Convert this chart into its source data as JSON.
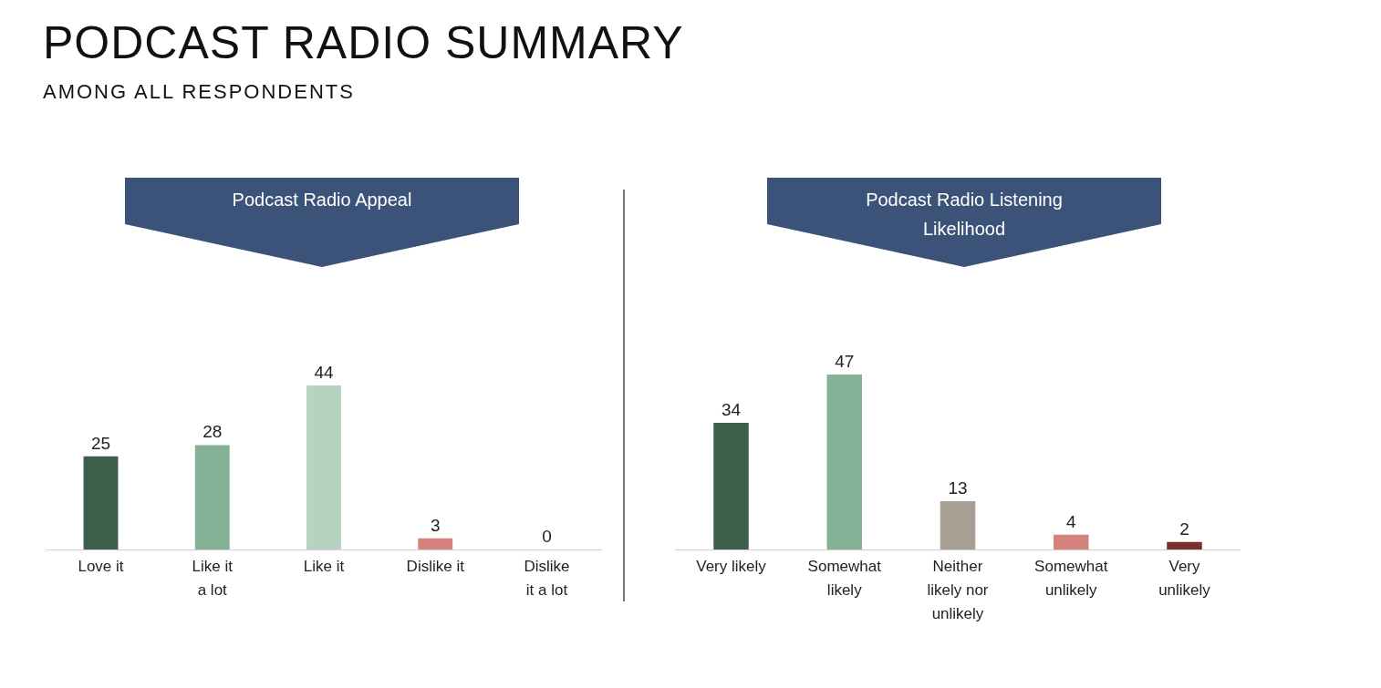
{
  "chart_data": [
    {
      "type": "other",
      "title": "PODCAST RADIO SUMMARY",
      "subtitle": "AMONG ALL RESPONDENTS"
    },
    {
      "type": "bar",
      "title": "Podcast Radio Appeal",
      "categories": [
        "Love it",
        "Like it a lot",
        "Like it",
        "Dislike it",
        "Dislike it a lot"
      ],
      "values": [
        25,
        28,
        44,
        3,
        0
      ],
      "colors": [
        "#3d5e4b",
        "#85b297",
        "#b6d3c2",
        "#d4827c",
        "#8b3a3a"
      ],
      "data_labels": true
    },
    {
      "type": "bar",
      "title": "Podcast Radio Listening Likelihood",
      "categories": [
        "Very likely",
        "Somewhat likely",
        "Neither likely nor unlikely",
        "Somewhat unlikely",
        "Very unlikely"
      ],
      "values": [
        34,
        47,
        13,
        4,
        2
      ],
      "colors": [
        "#3d5e4b",
        "#85b297",
        "#a89f95",
        "#d4827c",
        "#7a2f2f"
      ],
      "data_labels": true
    }
  ]
}
